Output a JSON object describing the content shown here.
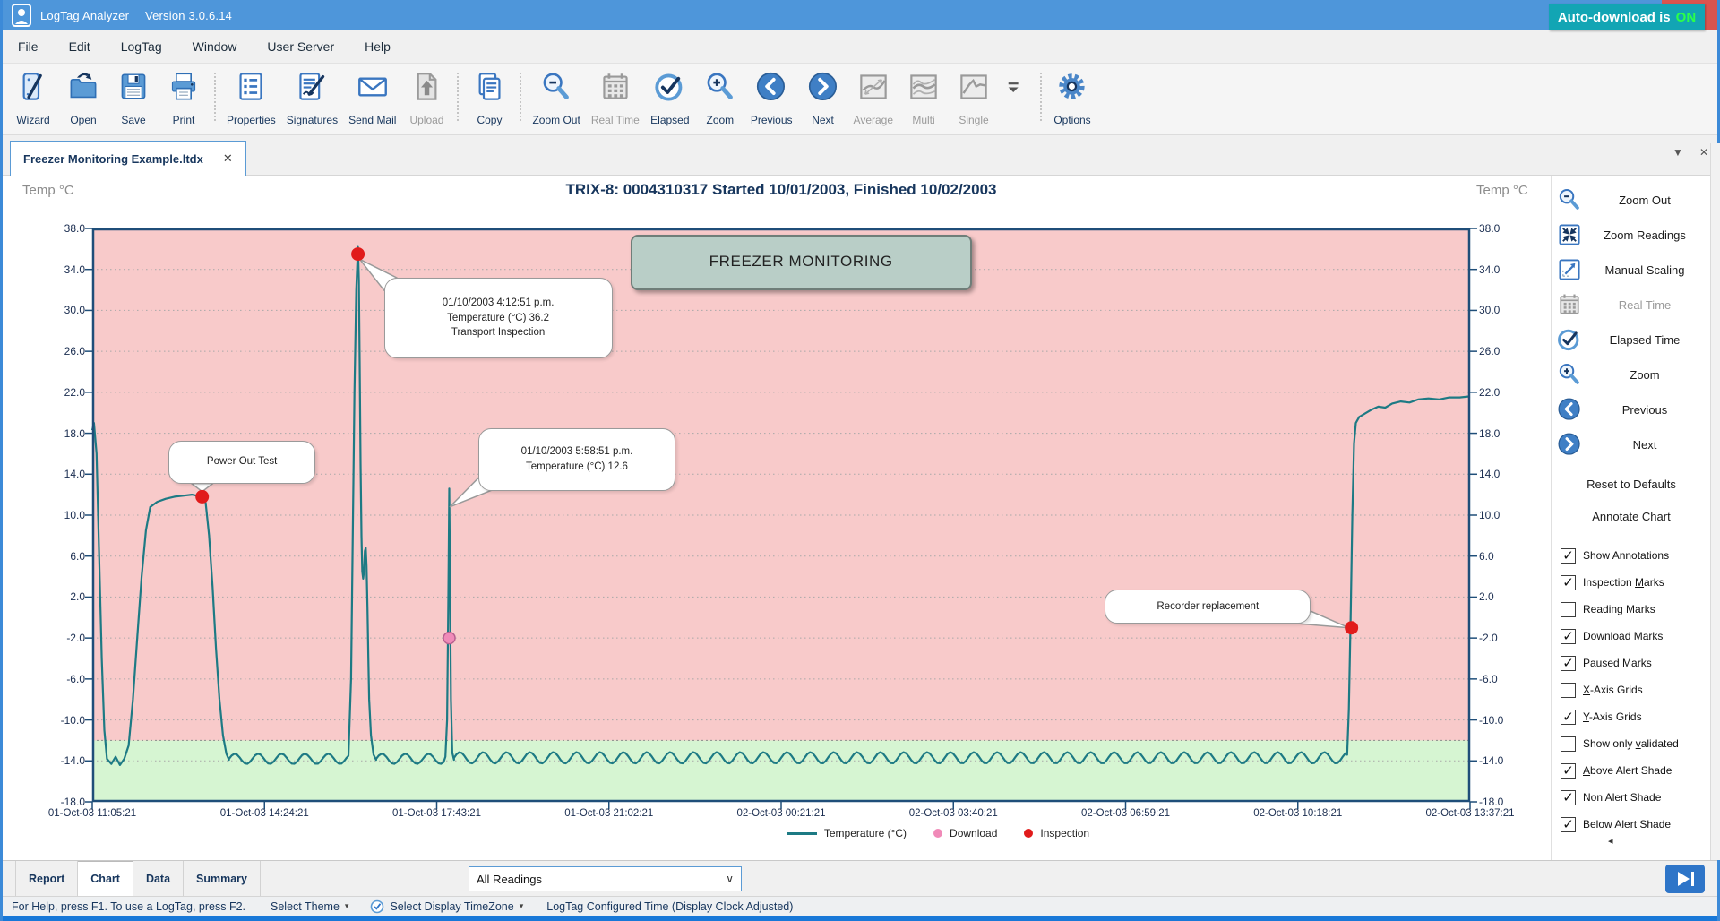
{
  "window": {
    "title_app": "LogTag Analyzer",
    "title_version": "Version 3.0.6.14",
    "controls": {
      "minimize": "minimize",
      "maximize": "maximize",
      "close": "close"
    }
  },
  "menu": {
    "items": [
      "File",
      "Edit",
      "LogTag",
      "Window",
      "User Server",
      "Help"
    ],
    "badge": {
      "text": "Auto-download is",
      "state": "ON"
    }
  },
  "toolbar": {
    "buttons": [
      {
        "label": "Wizard",
        "icon": "wizard"
      },
      {
        "label": "Open",
        "icon": "open"
      },
      {
        "label": "Save",
        "icon": "save"
      },
      {
        "label": "Print",
        "icon": "print"
      },
      {
        "label": "Properties",
        "icon": "properties",
        "sep_before": true
      },
      {
        "label": "Signatures",
        "icon": "signatures"
      },
      {
        "label": "Send Mail",
        "icon": "sendmail"
      },
      {
        "label": "Upload",
        "icon": "upload",
        "disabled": true
      },
      {
        "label": "Copy",
        "icon": "copy",
        "sep_before": true
      },
      {
        "label": "Zoom Out",
        "icon": "zoomout",
        "sep_before": true
      },
      {
        "label": "Real Time",
        "icon": "realtime",
        "disabled": true
      },
      {
        "label": "Elapsed",
        "icon": "elapsed"
      },
      {
        "label": "Zoom",
        "icon": "zoomin"
      },
      {
        "label": "Previous",
        "icon": "previous"
      },
      {
        "label": "Next",
        "icon": "next"
      },
      {
        "label": "Average",
        "icon": "chart-average",
        "disabled": true
      },
      {
        "label": "Multi",
        "icon": "chart-multi",
        "disabled": true
      },
      {
        "label": "Single",
        "icon": "chart-single",
        "disabled": true
      },
      {
        "label": "",
        "icon": "overflow",
        "overflow": true
      },
      {
        "label": "Options",
        "icon": "options",
        "sep_before": true
      }
    ]
  },
  "tabstrip": {
    "tabs": [
      {
        "label": "Freezer Monitoring Example.ltdx",
        "close": "✕",
        "active": true
      }
    ],
    "right_icons": {
      "dropdown": "▼",
      "close": "✕"
    }
  },
  "chart_header": {
    "left_axis_title": "Temp °C",
    "right_axis_title": "Temp °C",
    "title": "TRIX-8: 0004310317 Started 10/01/2003, Finished 10/02/2003"
  },
  "chart_data": {
    "type": "line",
    "title": "TRIX-8: 0004310317 Started 10/01/2003, Finished 10/02/2003",
    "ylabel": "Temp °C",
    "ylim": [
      -18,
      38
    ],
    "y_ticks": [
      38,
      34,
      30,
      26,
      22,
      18,
      14,
      10,
      6,
      2,
      -2,
      -6,
      -10,
      -14,
      -18
    ],
    "x_ticks": [
      {
        "t": 0,
        "label": "01-Oct-03 11:05:21"
      },
      {
        "t": 199,
        "label": "01-Oct-03 14:24:21"
      },
      {
        "t": 398,
        "label": "01-Oct-03 17:43:21"
      },
      {
        "t": 597,
        "label": "01-Oct-03 21:02:21"
      },
      {
        "t": 796,
        "label": "02-Oct-03 00:21:21"
      },
      {
        "t": 995,
        "label": "02-Oct-03 03:40:21"
      },
      {
        "t": 1194,
        "label": "02-Oct-03 06:59:21"
      },
      {
        "t": 1393,
        "label": "02-Oct-03 10:18:21"
      },
      {
        "t": 1592,
        "label": "02-Oct-03 13:37:21"
      }
    ],
    "x_range_minutes": [
      0,
      1592
    ],
    "grid": {
      "x": false,
      "y": true
    },
    "zones": {
      "above_alert_color": "#f8caca",
      "non_alert_color": "#d6f5d2",
      "boundary_temp": -12
    },
    "series": [
      {
        "name": "Temperature (°C)",
        "color": "#1d7a84",
        "segments": [
          {
            "type": "points",
            "pts": [
              [
                0,
                18.3
              ],
              [
                2,
                19.0
              ],
              [
                5,
                16
              ],
              [
                8,
                6
              ],
              [
                11,
                -4
              ],
              [
                14,
                -11
              ],
              [
                17,
                -13.8
              ],
              [
                22,
                -14.3
              ],
              [
                27,
                -13.6
              ],
              [
                32,
                -14.4
              ],
              [
                37,
                -13.8
              ],
              [
                42,
                -12.5
              ],
              [
                47,
                -8
              ],
              [
                52,
                -2
              ],
              [
                57,
                4
              ],
              [
                62,
                8.5
              ],
              [
                67,
                10.8
              ],
              [
                75,
                11.3
              ],
              [
                85,
                11.6
              ],
              [
                95,
                11.8
              ],
              [
                105,
                11.9
              ],
              [
                115,
                12.0
              ],
              [
                127,
                11.8
              ],
              [
                131,
                11.2
              ],
              [
                135,
                8
              ],
              [
                139,
                3
              ],
              [
                143,
                -3
              ],
              [
                147,
                -8
              ],
              [
                151,
                -11.5
              ],
              [
                155,
                -13.3
              ],
              [
                158,
                -13.9
              ]
            ]
          },
          {
            "type": "osc",
            "from": 158,
            "to": 294,
            "mean": -13.8,
            "amp": 0.5,
            "period": 27
          },
          {
            "type": "points",
            "pts": [
              [
                296,
                -13.5
              ],
              [
                299,
                -6
              ],
              [
                301,
                8
              ],
              [
                303,
                22
              ],
              [
                305,
                32
              ],
              [
                307,
                36.2
              ],
              [
                308,
                33
              ],
              [
                309,
                25
              ],
              [
                310,
                15
              ],
              [
                311,
                8
              ],
              [
                312,
                4.5
              ],
              [
                313,
                3.8
              ],
              [
                314,
                4.5
              ],
              [
                315,
                6.5
              ],
              [
                316,
                6.8
              ],
              [
                317,
                5
              ],
              [
                318,
                1
              ],
              [
                319,
                -4
              ],
              [
                320,
                -8
              ],
              [
                322,
                -11.5
              ],
              [
                325,
                -13.4
              ],
              [
                328,
                -13.9
              ]
            ]
          },
          {
            "type": "osc",
            "from": 328,
            "to": 406,
            "mean": -13.8,
            "amp": 0.5,
            "period": 27
          },
          {
            "type": "points",
            "pts": [
              [
                408,
                -13.6
              ],
              [
                410,
                -10
              ],
              [
                411.5,
                2
              ],
              [
                412.5,
                12.6
              ],
              [
                413.5,
                2
              ],
              [
                414.5,
                -8
              ],
              [
                416,
                -13.2
              ],
              [
                418,
                -13.9
              ]
            ]
          },
          {
            "type": "osc",
            "from": 418,
            "to": 1448,
            "mean": -13.7,
            "amp": 0.55,
            "period": 27
          },
          {
            "type": "points",
            "pts": [
              [
                1450,
                -13.4
              ],
              [
                1452,
                -9
              ],
              [
                1454,
                0
              ],
              [
                1456,
                10
              ],
              [
                1458,
                17
              ],
              [
                1460,
                19.0
              ],
              [
                1464,
                19.6
              ],
              [
                1470,
                19.9
              ],
              [
                1478,
                20.3
              ],
              [
                1486,
                20.6
              ],
              [
                1494,
                20.5
              ],
              [
                1502,
                20.9
              ],
              [
                1512,
                21.1
              ],
              [
                1522,
                21.0
              ],
              [
                1532,
                21.3
              ],
              [
                1544,
                21.4
              ],
              [
                1556,
                21.3
              ],
              [
                1568,
                21.5
              ],
              [
                1580,
                21.5
              ],
              [
                1592,
                21.6
              ]
            ]
          }
        ]
      }
    ],
    "markers": {
      "inspection": {
        "label": "Inspection",
        "color": "#e11b1b",
        "points": [
          [
            127,
            11.8
          ],
          [
            307,
            35.5
          ],
          [
            1455,
            -1.0
          ]
        ]
      },
      "download": {
        "label": "Download",
        "color": "#f08ab8",
        "border": "#b8608f",
        "points": [
          [
            412.5,
            -2.0
          ]
        ]
      }
    },
    "legend": [
      {
        "label": "Temperature (°C)",
        "swatch": "line",
        "color": "#1d7a84"
      },
      {
        "label": "Download",
        "swatch": "dot",
        "color": "#f08ab8"
      },
      {
        "label": "Inspection",
        "swatch": "dot",
        "color": "#e11b1b"
      }
    ],
    "annotations": [
      {
        "id": "power-out-test",
        "style": "callout",
        "lines": [
          "Power Out Test"
        ],
        "box_min": [
          88,
          17.3
        ],
        "box_max": [
          258,
          13.1
        ],
        "target": [
          127,
          12.3
        ]
      },
      {
        "id": "transport-inspection",
        "style": "callout",
        "lines": [
          "01/10/2003 4:12:51 p.m.",
          "Temperature (°C) 36.2",
          "Transport Inspection"
        ],
        "box_min": [
          337,
          33.2
        ],
        "box_max": [
          601,
          25.3
        ],
        "target": [
          309,
          35.0
        ]
      },
      {
        "id": "spike-reading",
        "style": "callout",
        "lines": [
          "01/10/2003 5:58:51 p.m.",
          "Temperature (°C) 12.6"
        ],
        "box_min": [
          446,
          18.5
        ],
        "box_max": [
          674,
          12.4
        ],
        "target": [
          413,
          10.8
        ]
      },
      {
        "id": "freezer-monitoring-banner",
        "style": "banner",
        "lines": [
          "FREEZER MONITORING"
        ],
        "box_min": [
          622,
          37.4
        ],
        "box_max": [
          1016,
          32.0
        ]
      },
      {
        "id": "recorder-replacement",
        "style": "callout",
        "lines": [
          "Recorder replacement"
        ],
        "box_min": [
          1170,
          2.7
        ],
        "box_max": [
          1408,
          -0.6
        ],
        "target": [
          1452,
          -1.0
        ]
      }
    ]
  },
  "sidebar": {
    "buttons": [
      {
        "label": "Zoom Out",
        "icon": "zoomout"
      },
      {
        "label": "Zoom Readings",
        "icon": "zoomreadings"
      },
      {
        "label": "Manual Scaling",
        "icon": "manualscaling"
      },
      {
        "label": "Real Time",
        "icon": "realtime",
        "disabled": true
      },
      {
        "label": "Elapsed Time",
        "icon": "elapsed"
      },
      {
        "label": "Zoom",
        "icon": "zoomin"
      },
      {
        "label": "Previous",
        "icon": "previous"
      },
      {
        "label": "Next",
        "icon": "next"
      }
    ],
    "links": [
      "Reset to Defaults",
      "Annotate Chart"
    ],
    "checkboxes": [
      {
        "label": "Show Annotations",
        "checked": true
      },
      {
        "label": "Inspection Marks",
        "checked": true,
        "hotkey": "M"
      },
      {
        "label": "Reading Marks",
        "checked": false
      },
      {
        "label": "Download Marks",
        "checked": true,
        "hotkey": "D"
      },
      {
        "label": "Paused Marks",
        "checked": true
      },
      {
        "label": "X-Axis Grids",
        "checked": false,
        "hotkey": "X"
      },
      {
        "label": "Y-Axis Grids",
        "checked": true,
        "hotkey": "Y"
      },
      {
        "label": "Show only validated",
        "checked": false,
        "hotkey": "v"
      },
      {
        "label": "Above Alert Shade",
        "checked": true,
        "hotkey": "A"
      },
      {
        "label": "Non Alert Shade",
        "checked": true
      },
      {
        "label": "Below Alert Shade",
        "checked": true
      }
    ],
    "collapse_icon": "◂"
  },
  "bottom_tabs": {
    "tabs": [
      "Report",
      "Chart",
      "Data",
      "Summary"
    ],
    "active": "Chart",
    "readings_select": {
      "value": "All Readings",
      "caret": "∨"
    }
  },
  "statusbar": {
    "help": "For Help, press F1. To use a LogTag, press F2.",
    "theme": "Select Theme",
    "timezone": "Select Display TimeZone",
    "configured": "LogTag Configured Time (Display Clock Adjusted)",
    "caret": "▾"
  }
}
